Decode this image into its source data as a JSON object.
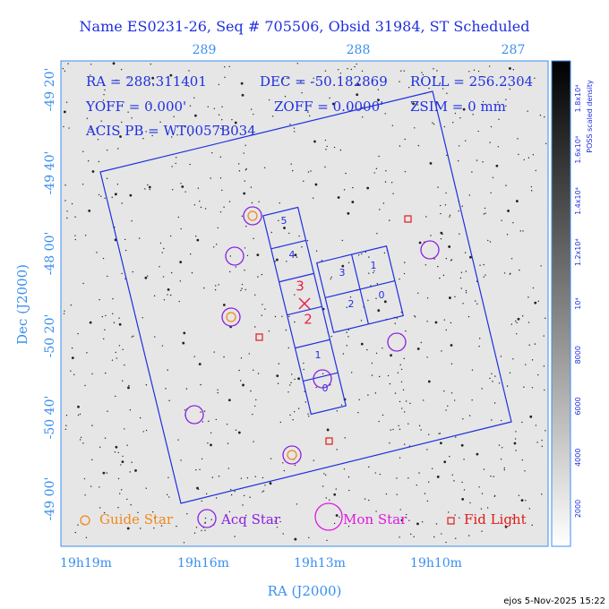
{
  "title": "Name ES0231-26, Seq # 705506, Obsid 31984, ST Scheduled",
  "info": [
    "RA = 288.311401",
    "DEC = -50.182869",
    "ROLL = 256.2304",
    "YOFF = 0.000'",
    "ZOFF = 0.0000'",
    "ZSIM = 0 mm",
    "ACIS PB = WT0057B034"
  ],
  "top_axis": [
    "289",
    "288",
    "287"
  ],
  "bottom_axis": [
    "19h19m",
    "19h16m",
    "19h13m",
    "19h10m"
  ],
  "left_axis": [
    "-49 20'",
    "-49 40'",
    "-48 00'",
    "-50 20'",
    "-50 40'",
    "-49 00'"
  ],
  "x_label": "RA (J2000)",
  "y_label": "Dec (J2000)",
  "column_chips": [
    "5",
    "4",
    "3",
    "2",
    "1",
    "0"
  ],
  "array_chips": [
    "3",
    "1",
    "2",
    "0"
  ],
  "legend": [
    "Guide Star",
    "Acq Star",
    "Mon Star",
    "Fid Light"
  ],
  "colorbar": {
    "label": "POSS scaled density",
    "ticks": [
      "2000",
      "4000",
      "6000",
      "8000",
      "10⁴",
      "1.2x10⁴",
      "1.4x10⁴",
      "1.6x10⁴",
      "1.8x10⁴"
    ]
  },
  "footer": "ejos  5-Nov-2025 15:22"
}
